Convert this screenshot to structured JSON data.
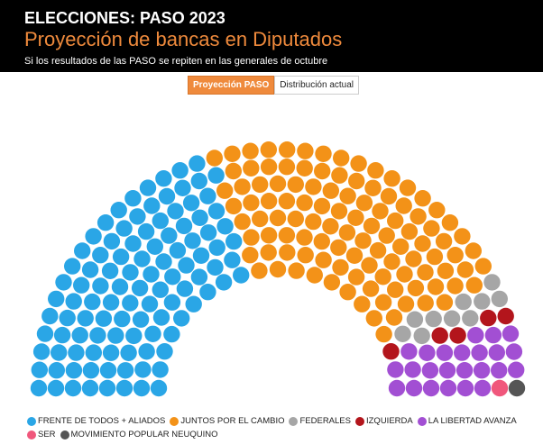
{
  "header": {
    "title": "ELECCIONES: PASO 2023",
    "subtitle": "Proyección de bancas en Diputados",
    "note": "Si los resultados de las PASO se repiten en las generales de octubre"
  },
  "tabs": [
    {
      "label": "Proyección PASO",
      "active": true
    },
    {
      "label": "Distribución actual",
      "active": false
    }
  ],
  "chart_data": {
    "type": "parliament",
    "total_seats": 257,
    "series": [
      {
        "name": "FRENTE DE TODOS + ALIADOS",
        "seats": 107,
        "color": "#2aa6e6"
      },
      {
        "name": "JUNTOS POR EL CAMBIO",
        "seats": 109,
        "color": "#f39218"
      },
      {
        "name": "FEDERALES",
        "seats": 10,
        "color": "#a6a6a6"
      },
      {
        "name": "IZQUIERDA",
        "seats": 5,
        "color": "#b3151c"
      },
      {
        "name": "LA LIBERTAD AVANZA",
        "seats": 24,
        "color": "#a24fd3"
      },
      {
        "name": "SER",
        "seats": 1,
        "color": "#f0577c"
      },
      {
        "name": "MOVIMIENTO POPULAR NEUQUINO",
        "seats": 1,
        "color": "#555555"
      }
    ]
  }
}
